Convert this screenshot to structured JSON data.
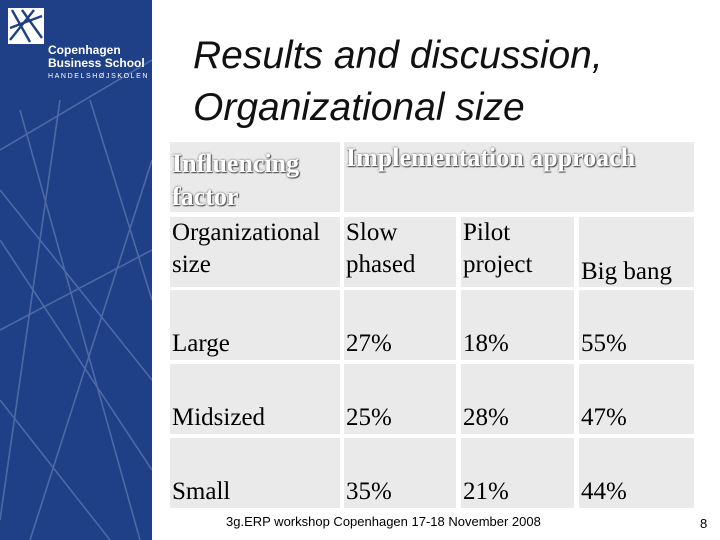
{
  "logo": {
    "line1": "Copenhagen",
    "line2": "Business School",
    "line3": "HANDELSHØJSKOLEN"
  },
  "slide": {
    "title_line1": "Results and discussion,",
    "title_line2": "Organizational size"
  },
  "table": {
    "header_factor": "Influencing factor",
    "header_approach": "Implementation approach",
    "subheader": {
      "factor": "Organizational size",
      "slow": "Slow phased",
      "pilot": "Pilot project",
      "bigbang": "Big bang"
    },
    "rows": [
      {
        "size": "Large",
        "slow": "27%",
        "pilot": "18%",
        "bigbang": "55%"
      },
      {
        "size": "Midsized",
        "slow": "25%",
        "pilot": "28%",
        "bigbang": "47%"
      },
      {
        "size": "Small",
        "slow": "35%",
        "pilot": "21%",
        "bigbang": "44%"
      }
    ]
  },
  "footer": {
    "text": "3g.ERP workshop Copenhagen 17-18 November 2008",
    "page": "8"
  },
  "colors": {
    "sidebar": "#1f3f86",
    "cell": "#eaeaea"
  }
}
